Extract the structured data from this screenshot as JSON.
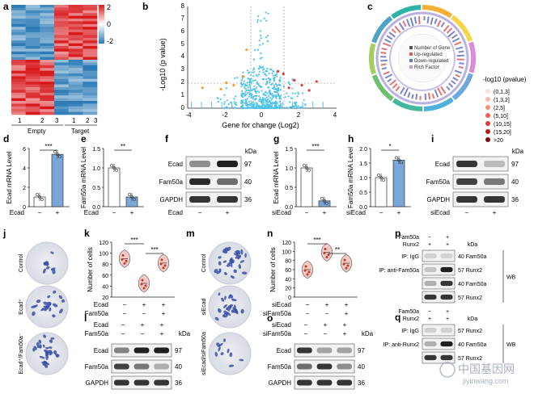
{
  "panels": {
    "a": "a",
    "b": "b",
    "c": "c",
    "d": "d",
    "e": "e",
    "f": "f",
    "g": "g",
    "h": "h",
    "i": "i",
    "j": "j",
    "k": "k",
    "l": "l",
    "m": "m",
    "n": "n",
    "o": "o",
    "p": "p",
    "q": "q"
  },
  "colors": {
    "up": "#d7191c",
    "down": "#2c7bb6",
    "mid": "#ffffff",
    "scatter": "#4fc3e8",
    "bar_blue": "#7ba7d8",
    "violin": "#f3c9c3"
  },
  "a": {
    "legend_ticks": [
      "2",
      "0",
      "-2"
    ],
    "col_labels": [
      "1",
      "2",
      "3",
      "1",
      "2",
      "3"
    ],
    "groups": [
      "Empty",
      "Target"
    ]
  },
  "b": {
    "ylabel": "-Log10 (p value)",
    "xlabel": "Gene for change (Log2)",
    "xticks": [
      "-4",
      "-2",
      "0",
      "2",
      "4"
    ],
    "yticks": [
      "0",
      "1",
      "2",
      "3",
      "4",
      "5",
      "6",
      "7",
      "8"
    ]
  },
  "c": {
    "legend_title": "-log10 (pvalue)",
    "legend_items": [
      "(0,1,3]",
      "(1,3,2]",
      "(2,5]",
      "(5,10]",
      "(10,15]",
      "(15,20]",
      ">20"
    ],
    "legend_colors": [
      "#fde0d8",
      "#f8b9a6",
      "#f39174",
      "#e9664d",
      "#d93d2e",
      "#b51f1b",
      "#7f0c0c"
    ],
    "inner_legend": [
      "Number of Gene",
      "Up-regulated",
      "Down-regulated",
      "Rich Factor"
    ]
  },
  "d": {
    "ylabel": "Ecad mRNA Level",
    "yticks": [
      "0",
      "2",
      "4",
      "6"
    ],
    "xrow_label": "Ecad",
    "x": [
      "−",
      "+"
    ],
    "values": [
      1.0,
      5.4
    ],
    "sig": "***"
  },
  "e": {
    "ylabel": "Fam50a mRNA Level",
    "yticks": [
      "0.0",
      "0.5",
      "1.0",
      "1.5"
    ],
    "xrow_label": "Ecad",
    "x": [
      "−",
      "+"
    ],
    "values": [
      1.0,
      0.25
    ],
    "sig": "**"
  },
  "f": {
    "bands": [
      "Ecad",
      "Fam50a",
      "GAPDH"
    ],
    "kda": [
      "97",
      "40",
      "36"
    ],
    "kda_label": "kDa",
    "xrow_label": "Ecad",
    "x": [
      "−",
      "+"
    ]
  },
  "g": {
    "ylabel": "Ecad mRNA Level",
    "yticks": [
      "0.0",
      "0.5",
      "1.0",
      "1.5"
    ],
    "xrow_label": "siEcad",
    "x": [
      "−",
      "+"
    ],
    "values": [
      1.0,
      0.15
    ],
    "sig": "***"
  },
  "h": {
    "ylabel": "Fam50a mRNA Level",
    "yticks": [
      "0.0",
      "0.5",
      "1.0",
      "1.5",
      "2.0"
    ],
    "xrow_label": "siEcad",
    "x": [
      "−",
      "+"
    ],
    "values": [
      1.0,
      1.6
    ],
    "sig": "*"
  },
  "i": {
    "bands": [
      "Ecad",
      "Fam50a",
      "GAPDH"
    ],
    "kda": [
      "97",
      "40",
      "36"
    ],
    "kda_label": "kDa",
    "xrow_label": "siEcad",
    "x": [
      "−",
      "+"
    ]
  },
  "j": {
    "labels": [
      "Control",
      "Ecad⁺",
      "Ecad⁺/Fam50a⁻"
    ]
  },
  "k": {
    "ylabel": "Number of cells",
    "yticks": [
      "20",
      "40",
      "60",
      "80",
      "100",
      "120"
    ],
    "sig": [
      "***",
      "***"
    ],
    "rows": [
      {
        "label": "Ecad",
        "vals": [
          "−",
          "+",
          "+"
        ]
      },
      {
        "label": "Fam50a",
        "vals": [
          "−",
          "−",
          "+"
        ]
      }
    ]
  },
  "l": {
    "bands": [
      "Ecad",
      "Fam50a",
      "GAPDH"
    ],
    "kda": [
      "97",
      "40",
      "36"
    ],
    "kda_label": "kDa",
    "rows": [
      {
        "label": "Ecad",
        "vals": [
          "−",
          "+",
          "+"
        ]
      },
      {
        "label": "Fam50a",
        "vals": [
          "−",
          "−",
          "+"
        ]
      }
    ]
  },
  "m": {
    "labels": [
      "Control",
      "siEcad",
      "siEcad/siFam50a"
    ]
  },
  "n": {
    "ylabel": "Number of cells",
    "yticks": [
      "0",
      "20",
      "40",
      "60",
      "80",
      "100",
      "120"
    ],
    "sig": [
      "***",
      "**"
    ],
    "rows": [
      {
        "label": "siEcad",
        "vals": [
          "−",
          "+",
          "+"
        ]
      },
      {
        "label": "siFam50a",
        "vals": [
          "−",
          "−",
          "+"
        ]
      }
    ]
  },
  "o": {
    "bands": [
      "Ecad",
      "Fam50a",
      "GAPDH"
    ],
    "kda": [
      "97",
      "40",
      "36"
    ],
    "kda_label": "kDa",
    "rows": [
      {
        "label": "siEcad",
        "vals": [
          "−",
          "+",
          "+"
        ]
      },
      {
        "label": "siFam50a",
        "vals": [
          "−",
          "−",
          "+"
        ]
      }
    ]
  },
  "p": {
    "header_rows": [
      {
        "label": "Fam50a",
        "vals": [
          "−",
          "+"
        ]
      },
      {
        "label": "Runx2",
        "vals": [
          "+",
          "+"
        ]
      }
    ],
    "kda_label": "kDa",
    "ip_labels": [
      "IP: IgG",
      "IP: anti-Fam50a"
    ],
    "bands": [
      {
        "kda": "40",
        "name": "Fam50a"
      },
      {
        "kda": "57",
        "name": "Runx2"
      },
      {
        "kda": "40",
        "name": "Fam50a"
      },
      {
        "kda": "57",
        "name": "Runx2"
      }
    ],
    "wb": "WB"
  },
  "q": {
    "header_rows": [
      {
        "label": "Fam50a",
        "vals": [
          "−",
          "+"
        ]
      },
      {
        "label": "Runx2",
        "vals": [
          "+",
          "+"
        ]
      }
    ],
    "kda_label": "kDa",
    "ip_labels": [
      "IP: IgG",
      "IP: anti-Runx2"
    ],
    "bands": [
      {
        "kda": "57",
        "name": "Runx2"
      },
      {
        "kda": "40",
        "name": "Fam50a"
      },
      {
        "kda": "57",
        "name": "Runx2"
      }
    ],
    "wb": "WB"
  },
  "watermark": {
    "cn": "中国基因网",
    "url": "jiyinwang.com"
  }
}
